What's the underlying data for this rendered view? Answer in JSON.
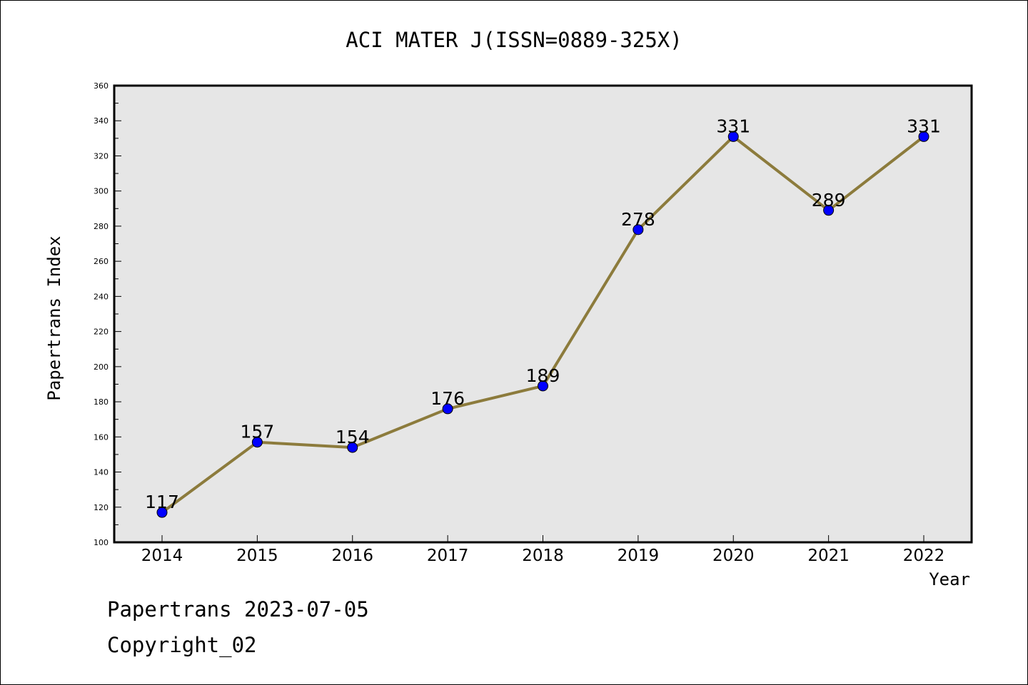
{
  "chart_data": {
    "type": "line",
    "title": "ACI MATER J(ISSN=0889-325X)",
    "xlabel": "Year",
    "ylabel": "Papertrans Index",
    "categories": [
      "2014",
      "2015",
      "2016",
      "2017",
      "2018",
      "2019",
      "2020",
      "2021",
      "2022"
    ],
    "series": [
      {
        "values": [
          117,
          157,
          154,
          176,
          189,
          278,
          331,
          289,
          331
        ]
      }
    ],
    "data_labels": [
      "117",
      "157",
      "154",
      "176",
      "189",
      "278",
      "331",
      "289",
      "331"
    ],
    "ylim": [
      100,
      360
    ],
    "yticks": [
      100,
      120,
      140,
      160,
      180,
      200,
      220,
      240,
      260,
      280,
      300,
      320,
      340,
      360
    ],
    "grid": false,
    "legend": "none",
    "colors": {
      "line": "#8c7b3c",
      "marker": "#0000ff",
      "plot_background": "#e6e6e6"
    }
  },
  "footer": {
    "line1": "Papertrans 2023-07-05",
    "line2": "Copyright_02"
  }
}
